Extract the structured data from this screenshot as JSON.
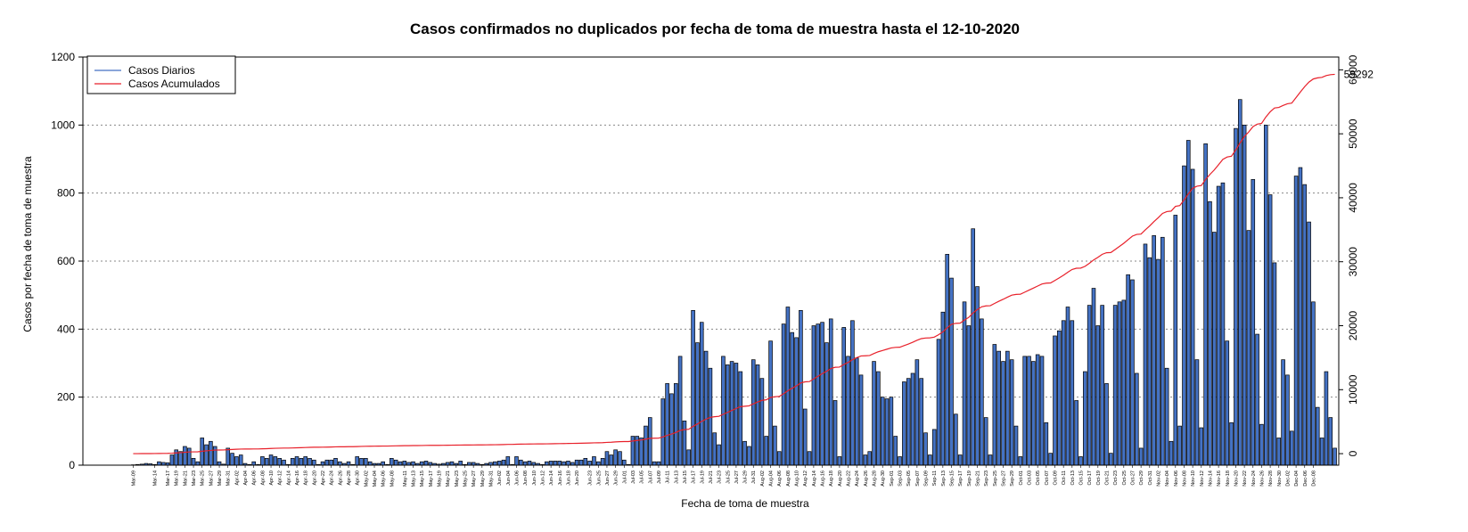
{
  "chart_data": {
    "type": "bar",
    "title": "Casos confirmados no duplicados por fecha de toma de muestra hasta el 12-10-2020",
    "xlabel": "Fecha de toma de muestra",
    "ylabel": "Casos por fecha de toma de muestra",
    "ylim": [
      0,
      1200
    ],
    "y_ticks": [
      0,
      200,
      400,
      600,
      800,
      1000,
      1200
    ],
    "y2lim": [
      -1800,
      62000
    ],
    "y2_ticks": [
      0,
      10000,
      20000,
      30000,
      40000,
      50000,
      60000
    ],
    "grid": "horizontal dotted",
    "legend_position": "top-left",
    "start_date": "2020-03-09",
    "x_tick_labels": [
      "Mar-09",
      "Mar-14",
      "Mar-17",
      "Mar-19",
      "Mar-21",
      "Mar-23",
      "Mar-25",
      "Mar-27",
      "Mar-29",
      "Mar-31",
      "Apr-02",
      "Apr-04",
      "Apr-06",
      "Apr-08",
      "Apr-10",
      "Apr-12",
      "Apr-14",
      "Apr-16",
      "Apr-18",
      "Apr-20",
      "Apr-22",
      "Apr-24",
      "Apr-26",
      "Apr-28",
      "Apr-30",
      "May-02",
      "May-04",
      "May-06",
      "May-08",
      "May-11",
      "May-13",
      "May-15",
      "May-17",
      "May-19",
      "May-21",
      "May-23",
      "May-25",
      "May-27",
      "May-29",
      "May-31",
      "Jun-02",
      "Jun-04",
      "Jun-06",
      "Jun-08",
      "Jun-10",
      "Jun-12",
      "Jun-14",
      "Jun-16",
      "Jun-18",
      "Jun-20",
      "Jun-23",
      "Jun-25",
      "Jun-27",
      "Jun-29",
      "Jul-01",
      "Jul-03",
      "Jul-05",
      "Jul-07",
      "Jul-09",
      "Jul-11",
      "Jul-13",
      "Jul-15",
      "Jul-17",
      "Jul-19",
      "Jul-21",
      "Jul-23",
      "Jul-25",
      "Jul-27",
      "Jul-29",
      "Jul-31",
      "Aug-02",
      "Aug-04",
      "Aug-06",
      "Aug-08",
      "Aug-10",
      "Aug-12",
      "Aug-14",
      "Aug-16",
      "Aug-18",
      "Aug-20",
      "Aug-22",
      "Aug-24",
      "Aug-26",
      "Aug-28",
      "Aug-30",
      "Sep-01",
      "Sep-03",
      "Sep-05",
      "Sep-07",
      "Sep-09",
      "Sep-11",
      "Sep-13",
      "Sep-15",
      "Sep-17",
      "Sep-19",
      "Sep-21",
      "Sep-23",
      "Sep-25",
      "Sep-27",
      "Sep-29",
      "Oct-01",
      "Oct-03",
      "Oct-05",
      "Oct-07",
      "Oct-09",
      "Oct-11",
      "Oct-13",
      "Oct-15",
      "Oct-17",
      "Oct-19",
      "Oct-21",
      "Oct-23",
      "Oct-25",
      "Oct-27",
      "Oct-29",
      "Oct-31",
      "Nov-02",
      "Nov-04",
      "Nov-06",
      "Nov-08",
      "Nov-10",
      "Nov-12",
      "Nov-14",
      "Nov-16",
      "Nov-18",
      "Nov-20",
      "Nov-22",
      "Nov-24",
      "Nov-26",
      "Nov-28",
      "Nov-30",
      "Dec-02",
      "Dec-04",
      "Dec-06",
      "Dec-08"
    ],
    "series": [
      {
        "name": "Casos Diarios",
        "type": "bar",
        "color": "#4472c4",
        "values": [
          1,
          2,
          3,
          5,
          4,
          2,
          10,
          8,
          7,
          30,
          45,
          40,
          55,
          50,
          20,
          10,
          80,
          60,
          70,
          55,
          10,
          3,
          50,
          35,
          25,
          30,
          5,
          2,
          10,
          2,
          25,
          20,
          30,
          25,
          20,
          15,
          2,
          20,
          25,
          20,
          25,
          20,
          15,
          2,
          10,
          15,
          15,
          20,
          10,
          5,
          10,
          2,
          25,
          20,
          20,
          10,
          5,
          5,
          10,
          2,
          20,
          15,
          10,
          12,
          8,
          10,
          5,
          10,
          12,
          8,
          5,
          3,
          5,
          8,
          10,
          5,
          12,
          2,
          8,
          8,
          5,
          2,
          5,
          8,
          10,
          12,
          15,
          25,
          2,
          25,
          15,
          10,
          12,
          8,
          5,
          2,
          10,
          12,
          12,
          12,
          10,
          12,
          8,
          15,
          15,
          20,
          12,
          25,
          10,
          20,
          40,
          30,
          45,
          40,
          15,
          2,
          85,
          85,
          80,
          115,
          140,
          10,
          10,
          195,
          240,
          210,
          240,
          320,
          130,
          45,
          455,
          360,
          420,
          335,
          285,
          95,
          60,
          320,
          295,
          305,
          300,
          275,
          70,
          55,
          310,
          295,
          255,
          85,
          365,
          115,
          40,
          415,
          465,
          390,
          375,
          455,
          165,
          40,
          410,
          415,
          420,
          360,
          430,
          190,
          25,
          405,
          320,
          425,
          315,
          265,
          30,
          40,
          305,
          275,
          200,
          195,
          200,
          85,
          25,
          245,
          255,
          270,
          310,
          255,
          95,
          30,
          105,
          370,
          450,
          620,
          550,
          150,
          30,
          480,
          410,
          695,
          525,
          430,
          140,
          30,
          355,
          335,
          305,
          335,
          310,
          115,
          25,
          320,
          320,
          305,
          325,
          320,
          125,
          35,
          380,
          395,
          425,
          465,
          425,
          190,
          25,
          275,
          470,
          520,
          410,
          470,
          240,
          35,
          470,
          480,
          485,
          560,
          545,
          270,
          50,
          650,
          610,
          675,
          605,
          670,
          285,
          70,
          735,
          115,
          880,
          955,
          870,
          310,
          110,
          945,
          775,
          685,
          820,
          830,
          365,
          125,
          990,
          1075,
          1000,
          690,
          840,
          385,
          120,
          1000,
          795,
          595,
          80,
          310,
          265,
          100,
          850,
          875,
          825,
          715,
          480,
          170,
          80,
          275,
          140,
          50
        ]
      },
      {
        "name": "Casos Acumulados",
        "type": "line",
        "color": "#e8202a",
        "final_value": 59292
      }
    ],
    "annotations": [
      "59292"
    ]
  }
}
